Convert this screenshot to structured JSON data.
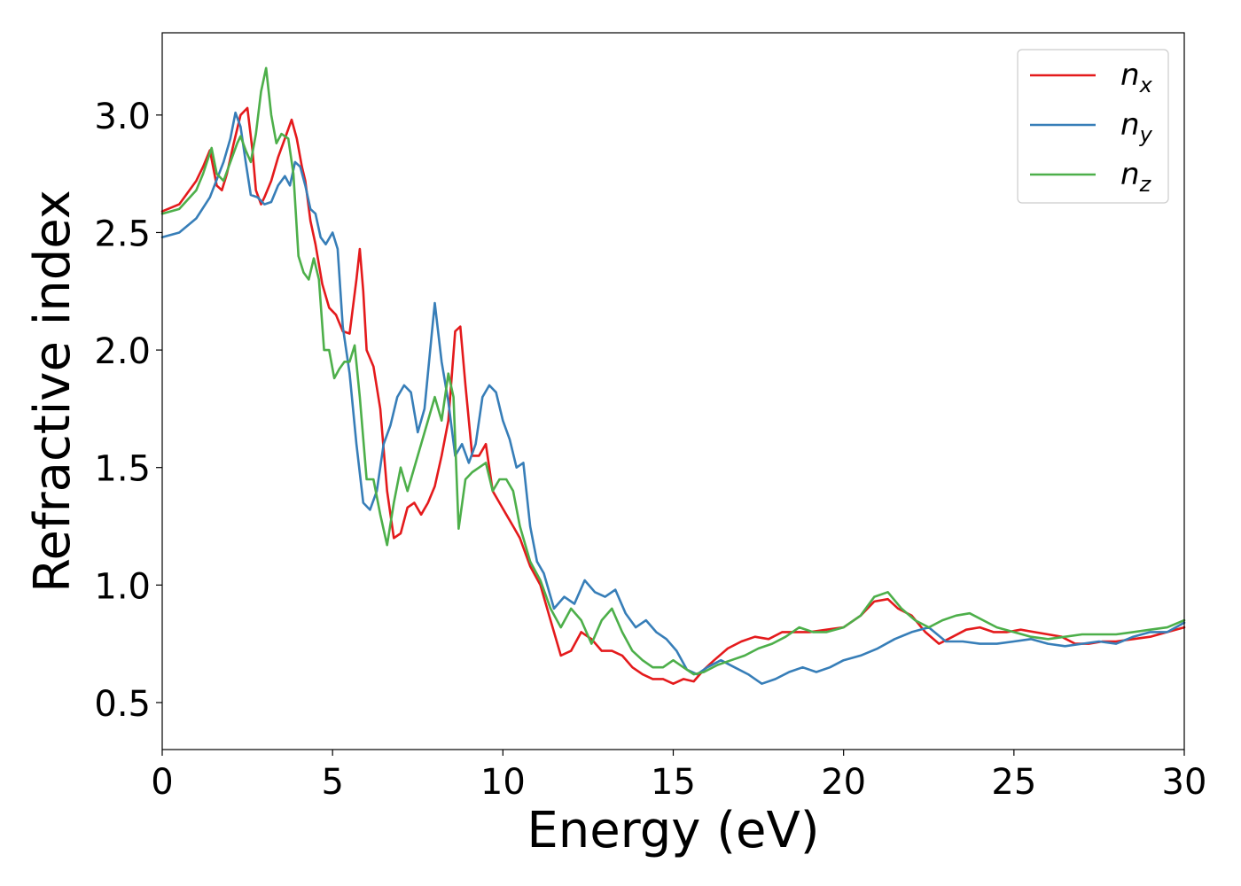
{
  "chart_data": {
    "type": "line",
    "title": "",
    "xlabel": "Energy (eV)",
    "ylabel": "Refractive index",
    "xlim": [
      0,
      30
    ],
    "ylim": [
      0.3,
      3.35
    ],
    "xticks": [
      0,
      5,
      10,
      15,
      20,
      25,
      30
    ],
    "xtick_labels": [
      "0",
      "5",
      "10",
      "15",
      "20",
      "25",
      "30"
    ],
    "yticks": [
      0.5,
      1.0,
      1.5,
      2.0,
      2.5,
      3.0
    ],
    "ytick_labels": [
      "0.5",
      "1.0",
      "1.5",
      "2.0",
      "2.5",
      "3.0"
    ],
    "grid": false,
    "legend_position": "top-right",
    "series": [
      {
        "name": "n_x",
        "label_base": "n",
        "label_sub": "x",
        "color": "#e41a1c",
        "x": [
          0,
          0.5,
          1.0,
          1.2,
          1.4,
          1.6,
          1.75,
          1.9,
          2.1,
          2.3,
          2.5,
          2.65,
          2.75,
          2.9,
          3.0,
          3.2,
          3.4,
          3.6,
          3.8,
          3.95,
          4.1,
          4.2,
          4.35,
          4.5,
          4.7,
          4.9,
          5.1,
          5.3,
          5.5,
          5.7,
          5.8,
          5.9,
          6.0,
          6.2,
          6.4,
          6.6,
          6.8,
          7.0,
          7.2,
          7.4,
          7.6,
          7.8,
          8.0,
          8.2,
          8.4,
          8.6,
          8.75,
          8.9,
          9.1,
          9.3,
          9.5,
          9.7,
          9.9,
          10.1,
          10.3,
          10.5,
          10.8,
          11.1,
          11.4,
          11.7,
          12.0,
          12.3,
          12.6,
          12.9,
          13.2,
          13.5,
          13.8,
          14.1,
          14.4,
          14.7,
          15.0,
          15.3,
          15.6,
          15.9,
          16.2,
          16.6,
          17.0,
          17.4,
          17.8,
          18.2,
          18.6,
          19.0,
          19.5,
          20.0,
          20.5,
          20.9,
          21.3,
          21.6,
          22.0,
          22.4,
          22.8,
          23.2,
          23.6,
          24.0,
          24.4,
          24.8,
          25.2,
          25.6,
          26.0,
          26.4,
          26.8,
          27.2,
          27.6,
          28.0,
          28.5,
          29.0,
          29.5,
          30.0
        ],
        "y": [
          2.59,
          2.62,
          2.72,
          2.78,
          2.85,
          2.7,
          2.68,
          2.75,
          2.88,
          3.0,
          3.03,
          2.85,
          2.68,
          2.62,
          2.65,
          2.72,
          2.82,
          2.9,
          2.98,
          2.9,
          2.78,
          2.72,
          2.55,
          2.45,
          2.28,
          2.18,
          2.15,
          2.08,
          2.07,
          2.3,
          2.43,
          2.25,
          2.0,
          1.93,
          1.75,
          1.4,
          1.2,
          1.22,
          1.33,
          1.35,
          1.3,
          1.35,
          1.42,
          1.55,
          1.7,
          2.08,
          2.1,
          1.85,
          1.55,
          1.55,
          1.6,
          1.4,
          1.35,
          1.3,
          1.25,
          1.2,
          1.08,
          1.0,
          0.85,
          0.7,
          0.72,
          0.8,
          0.77,
          0.72,
          0.72,
          0.7,
          0.65,
          0.62,
          0.6,
          0.6,
          0.58,
          0.6,
          0.59,
          0.64,
          0.68,
          0.73,
          0.76,
          0.78,
          0.77,
          0.8,
          0.8,
          0.8,
          0.81,
          0.82,
          0.87,
          0.93,
          0.94,
          0.9,
          0.87,
          0.8,
          0.75,
          0.78,
          0.81,
          0.82,
          0.8,
          0.8,
          0.81,
          0.8,
          0.79,
          0.78,
          0.75,
          0.75,
          0.76,
          0.76,
          0.77,
          0.78,
          0.8,
          0.82
        ]
      },
      {
        "name": "n_y",
        "label_base": "n",
        "label_sub": "y",
        "color": "#377eb8",
        "x": [
          0,
          0.5,
          1.0,
          1.4,
          1.8,
          2.0,
          2.15,
          2.3,
          2.45,
          2.6,
          2.8,
          3.0,
          3.2,
          3.4,
          3.6,
          3.75,
          3.9,
          4.05,
          4.2,
          4.35,
          4.5,
          4.65,
          4.8,
          5.0,
          5.15,
          5.3,
          5.5,
          5.7,
          5.9,
          6.1,
          6.3,
          6.5,
          6.7,
          6.9,
          7.1,
          7.3,
          7.5,
          7.7,
          7.9,
          8.0,
          8.2,
          8.4,
          8.6,
          8.8,
          9.0,
          9.2,
          9.4,
          9.6,
          9.8,
          10.0,
          10.2,
          10.4,
          10.6,
          10.8,
          11.0,
          11.2,
          11.5,
          11.8,
          12.1,
          12.4,
          12.7,
          13.0,
          13.3,
          13.6,
          13.9,
          14.2,
          14.5,
          14.8,
          15.1,
          15.4,
          15.7,
          16.0,
          16.4,
          16.8,
          17.2,
          17.6,
          18.0,
          18.4,
          18.8,
          19.2,
          19.6,
          20.0,
          20.5,
          21.0,
          21.5,
          22.0,
          22.5,
          23.0,
          23.5,
          24.0,
          24.5,
          25.0,
          25.5,
          26.0,
          26.5,
          27.0,
          27.5,
          28.0,
          28.5,
          29.0,
          29.5,
          30.0
        ],
        "y": [
          2.48,
          2.5,
          2.56,
          2.65,
          2.8,
          2.9,
          3.01,
          2.95,
          2.8,
          2.66,
          2.65,
          2.62,
          2.63,
          2.7,
          2.74,
          2.7,
          2.8,
          2.78,
          2.7,
          2.6,
          2.58,
          2.48,
          2.45,
          2.5,
          2.43,
          2.1,
          1.9,
          1.6,
          1.35,
          1.32,
          1.4,
          1.6,
          1.68,
          1.8,
          1.85,
          1.82,
          1.65,
          1.75,
          2.05,
          2.2,
          1.95,
          1.78,
          1.55,
          1.6,
          1.52,
          1.6,
          1.8,
          1.85,
          1.82,
          1.7,
          1.62,
          1.5,
          1.52,
          1.25,
          1.1,
          1.05,
          0.9,
          0.95,
          0.92,
          1.02,
          0.97,
          0.95,
          0.98,
          0.88,
          0.82,
          0.85,
          0.8,
          0.77,
          0.72,
          0.64,
          0.62,
          0.65,
          0.68,
          0.65,
          0.62,
          0.58,
          0.6,
          0.63,
          0.65,
          0.63,
          0.65,
          0.68,
          0.7,
          0.73,
          0.77,
          0.8,
          0.82,
          0.76,
          0.76,
          0.75,
          0.75,
          0.76,
          0.77,
          0.75,
          0.74,
          0.75,
          0.76,
          0.75,
          0.78,
          0.8,
          0.8,
          0.84
        ]
      },
      {
        "name": "n_z",
        "label_base": "n",
        "label_sub": "z",
        "color": "#4daf4a",
        "x": [
          0,
          0.5,
          1.0,
          1.2,
          1.45,
          1.6,
          1.8,
          2.0,
          2.2,
          2.3,
          2.45,
          2.6,
          2.75,
          2.9,
          3.05,
          3.2,
          3.35,
          3.5,
          3.7,
          3.85,
          4.0,
          4.15,
          4.3,
          4.45,
          4.6,
          4.75,
          4.9,
          5.05,
          5.2,
          5.35,
          5.5,
          5.65,
          5.8,
          6.0,
          6.2,
          6.4,
          6.6,
          6.8,
          7.0,
          7.2,
          7.4,
          7.6,
          7.8,
          8.0,
          8.2,
          8.4,
          8.55,
          8.7,
          8.9,
          9.1,
          9.3,
          9.5,
          9.7,
          9.9,
          10.1,
          10.3,
          10.5,
          10.8,
          11.1,
          11.4,
          11.7,
          12.0,
          12.3,
          12.6,
          12.9,
          13.2,
          13.5,
          13.8,
          14.1,
          14.4,
          14.7,
          15.0,
          15.3,
          15.6,
          15.9,
          16.3,
          16.7,
          17.1,
          17.5,
          17.9,
          18.3,
          18.7,
          19.1,
          19.5,
          20.0,
          20.5,
          20.9,
          21.3,
          21.7,
          22.1,
          22.5,
          22.9,
          23.3,
          23.7,
          24.1,
          24.5,
          25.0,
          25.5,
          26.0,
          26.5,
          27.0,
          27.5,
          28.0,
          28.5,
          29.0,
          29.5,
          30.0
        ],
        "y": [
          2.58,
          2.6,
          2.68,
          2.75,
          2.86,
          2.75,
          2.72,
          2.8,
          2.88,
          2.91,
          2.85,
          2.8,
          2.92,
          3.1,
          3.2,
          3.0,
          2.88,
          2.92,
          2.9,
          2.75,
          2.4,
          2.33,
          2.3,
          2.39,
          2.3,
          2.0,
          2.0,
          1.88,
          1.92,
          1.95,
          1.95,
          2.02,
          1.8,
          1.45,
          1.45,
          1.3,
          1.17,
          1.35,
          1.5,
          1.4,
          1.5,
          1.6,
          1.7,
          1.8,
          1.7,
          1.9,
          1.8,
          1.24,
          1.45,
          1.48,
          1.5,
          1.52,
          1.4,
          1.45,
          1.45,
          1.4,
          1.25,
          1.1,
          1.02,
          0.9,
          0.82,
          0.9,
          0.85,
          0.75,
          0.85,
          0.9,
          0.8,
          0.72,
          0.68,
          0.65,
          0.65,
          0.68,
          0.65,
          0.62,
          0.63,
          0.66,
          0.68,
          0.7,
          0.73,
          0.75,
          0.78,
          0.82,
          0.8,
          0.8,
          0.82,
          0.87,
          0.95,
          0.97,
          0.9,
          0.85,
          0.82,
          0.85,
          0.87,
          0.88,
          0.85,
          0.82,
          0.8,
          0.78,
          0.77,
          0.78,
          0.79,
          0.79,
          0.79,
          0.8,
          0.81,
          0.82,
          0.85
        ]
      }
    ]
  }
}
